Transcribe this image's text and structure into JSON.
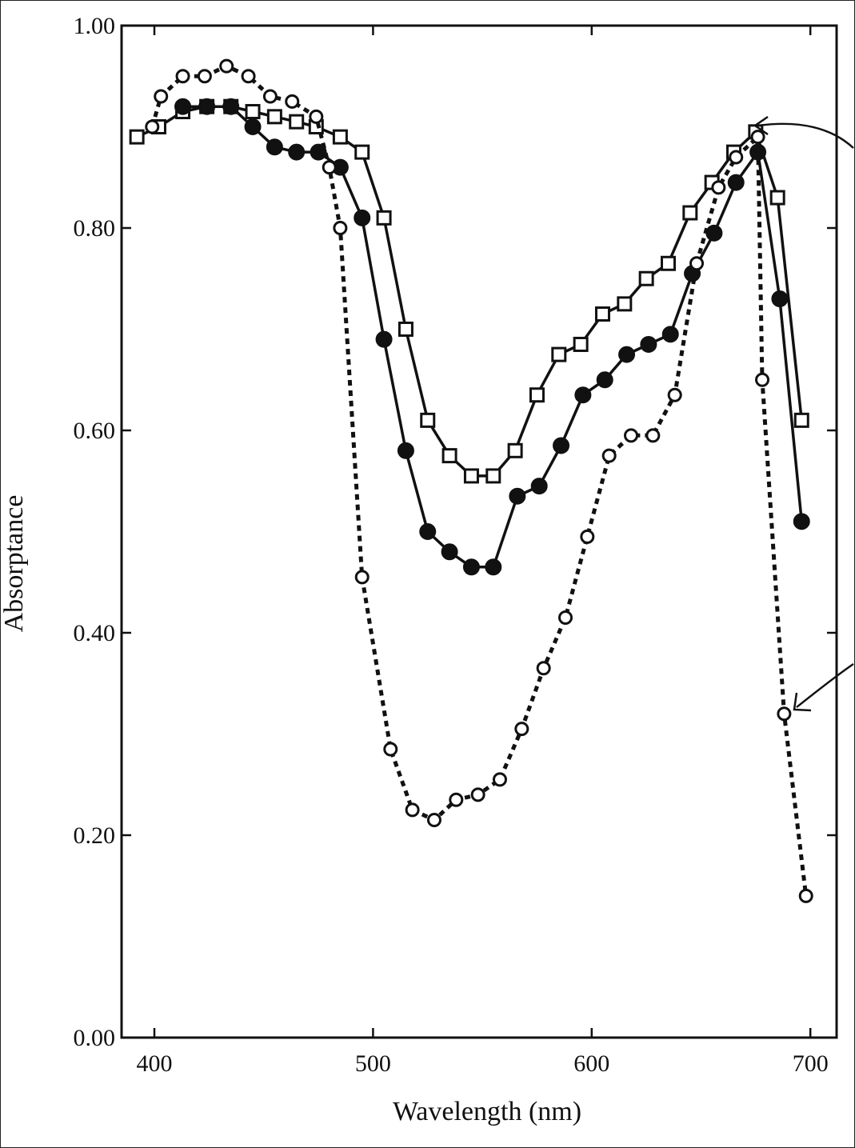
{
  "chart_data": {
    "type": "line",
    "title": "",
    "xlabel": "Wavelength (nm)",
    "ylabel": "Absorptance",
    "xlim": [
      385,
      712
    ],
    "ylim": [
      0,
      1
    ],
    "x_ticks": [
      {
        "value": 400,
        "label": "400"
      },
      {
        "value": 500,
        "label": "500"
      },
      {
        "value": 600,
        "label": "600"
      },
      {
        "value": 700,
        "label": "700"
      }
    ],
    "y_ticks": [
      {
        "value": 0.0,
        "label": "0.00"
      },
      {
        "value": 0.2,
        "label": "0.20"
      },
      {
        "value": 0.4,
        "label": "0.40"
      },
      {
        "value": 0.6,
        "label": "0.60"
      },
      {
        "value": 0.8,
        "label": "0.80"
      },
      {
        "value": 1.0,
        "label": "1.00"
      }
    ],
    "grid": false,
    "legend": false,
    "series": [
      {
        "marker": "open-square",
        "line": "solid",
        "color": "#111111",
        "points": [
          [
            392,
            0.89
          ],
          [
            402,
            0.9
          ],
          [
            413,
            0.915
          ],
          [
            424,
            0.92
          ],
          [
            435,
            0.92
          ],
          [
            445,
            0.915
          ],
          [
            455,
            0.91
          ],
          [
            465,
            0.905
          ],
          [
            474,
            0.9
          ],
          [
            485,
            0.89
          ],
          [
            495,
            0.875
          ],
          [
            505,
            0.81
          ],
          [
            515,
            0.7
          ],
          [
            525,
            0.61
          ],
          [
            535,
            0.575
          ],
          [
            545,
            0.555
          ],
          [
            555,
            0.555
          ],
          [
            565,
            0.58
          ],
          [
            575,
            0.635
          ],
          [
            585,
            0.675
          ],
          [
            595,
            0.685
          ],
          [
            605,
            0.715
          ],
          [
            615,
            0.725
          ],
          [
            625,
            0.75
          ],
          [
            635,
            0.765
          ],
          [
            645,
            0.815
          ],
          [
            655,
            0.845
          ],
          [
            665,
            0.875
          ],
          [
            675,
            0.895
          ],
          [
            685,
            0.83
          ],
          [
            696,
            0.61
          ]
        ]
      },
      {
        "marker": "filled-circle",
        "line": "solid",
        "color": "#111111",
        "points": [
          [
            413,
            0.92
          ],
          [
            424,
            0.92
          ],
          [
            435,
            0.92
          ],
          [
            445,
            0.9
          ],
          [
            455,
            0.88
          ],
          [
            465,
            0.875
          ],
          [
            475,
            0.875
          ],
          [
            485,
            0.86
          ],
          [
            495,
            0.81
          ],
          [
            505,
            0.69
          ],
          [
            515,
            0.58
          ],
          [
            525,
            0.5
          ],
          [
            535,
            0.48
          ],
          [
            545,
            0.465
          ],
          [
            555,
            0.465
          ],
          [
            566,
            0.535
          ],
          [
            576,
            0.545
          ],
          [
            586,
            0.585
          ],
          [
            596,
            0.635
          ],
          [
            606,
            0.65
          ],
          [
            616,
            0.675
          ],
          [
            626,
            0.685
          ],
          [
            636,
            0.695
          ],
          [
            646,
            0.755
          ],
          [
            656,
            0.795
          ],
          [
            666,
            0.845
          ],
          [
            676,
            0.875
          ],
          [
            686,
            0.73
          ],
          [
            696,
            0.51
          ]
        ]
      },
      {
        "marker": "open-circle",
        "line": "dotted",
        "color": "#111111",
        "points": [
          [
            399,
            0.9
          ],
          [
            403,
            0.93
          ],
          [
            413,
            0.95
          ],
          [
            423,
            0.95
          ],
          [
            433,
            0.96
          ],
          [
            443,
            0.95
          ],
          [
            453,
            0.93
          ],
          [
            463,
            0.925
          ],
          [
            474,
            0.91
          ],
          [
            480,
            0.86
          ],
          [
            485,
            0.8
          ],
          [
            495,
            0.455
          ],
          [
            508,
            0.285
          ],
          [
            518,
            0.225
          ],
          [
            528,
            0.215
          ],
          [
            538,
            0.235
          ],
          [
            548,
            0.24
          ],
          [
            558,
            0.255
          ],
          [
            568,
            0.305
          ],
          [
            578,
            0.365
          ],
          [
            588,
            0.415
          ],
          [
            598,
            0.495
          ],
          [
            608,
            0.575
          ],
          [
            618,
            0.595
          ],
          [
            628,
            0.595
          ],
          [
            638,
            0.635
          ],
          [
            648,
            0.765
          ],
          [
            658,
            0.84
          ],
          [
            666,
            0.87
          ],
          [
            676,
            0.89
          ],
          [
            678,
            0.65
          ],
          [
            688,
            0.32
          ],
          [
            698,
            0.14
          ]
        ]
      }
    ]
  }
}
